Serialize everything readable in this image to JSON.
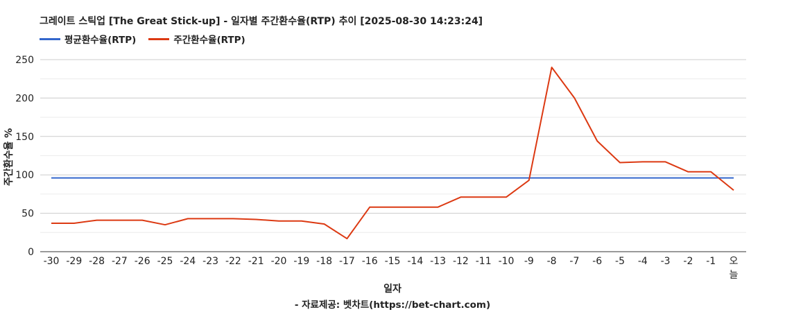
{
  "chart_data": {
    "type": "line",
    "title": "그레이트 스틱업 [The Great Stick-up] - 일자별 주간환수율(RTP) 추이 [2025-08-30 14:23:24]",
    "xlabel": "일자",
    "ylabel": "주간환수율 %",
    "source": "- 자료제공: 벳차트(https://bet-chart.com)",
    "categories": [
      "-30",
      "-29",
      "-28",
      "-27",
      "-26",
      "-25",
      "-24",
      "-23",
      "-22",
      "-21",
      "-20",
      "-19",
      "-18",
      "-17",
      "-16",
      "-15",
      "-14",
      "-13",
      "-12",
      "-11",
      "-10",
      "-9",
      "-8",
      "-7",
      "-6",
      "-5",
      "-4",
      "-3",
      "-2",
      "-1",
      "오늘"
    ],
    "ylim": [
      0,
      250
    ],
    "yticks": [
      0,
      50,
      100,
      150,
      200,
      250
    ],
    "grid": true,
    "legend_position": "top-left",
    "series": [
      {
        "name": "평균환수율(RTP)",
        "color": "#3366cc",
        "values": [
          96,
          96,
          96,
          96,
          96,
          96,
          96,
          96,
          96,
          96,
          96,
          96,
          96,
          96,
          96,
          96,
          96,
          96,
          96,
          96,
          96,
          96,
          96,
          96,
          96,
          96,
          96,
          96,
          96,
          96,
          96
        ]
      },
      {
        "name": "주간환수율(RTP)",
        "color": "#dc3912",
        "values": [
          37,
          37,
          41,
          41,
          41,
          35,
          43,
          43,
          43,
          42,
          40,
          40,
          36,
          17,
          58,
          58,
          58,
          58,
          71,
          71,
          71,
          93,
          240,
          200,
          144,
          116,
          117,
          117,
          104,
          104,
          80
        ]
      }
    ]
  }
}
